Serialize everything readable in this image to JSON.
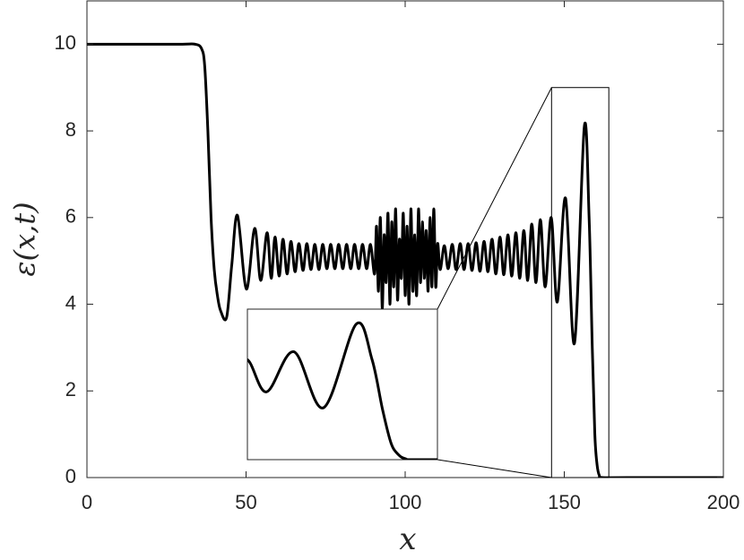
{
  "chart_data": {
    "type": "line",
    "xlabel": "x",
    "ylabel": "ε(x,t)",
    "xlim": [
      0,
      200
    ],
    "ylim": [
      0,
      11
    ],
    "xticks": [
      0,
      50,
      100,
      150,
      200
    ],
    "yticks": [
      0,
      2,
      4,
      6,
      8,
      10
    ],
    "series": [
      {
        "color": "#000000",
        "x": [
          0,
          10,
          20,
          30,
          34,
          36,
          37,
          38,
          39,
          40,
          41,
          42,
          43.9,
          45.5,
          47.3,
          50.1,
          52.7,
          54.6,
          56.6,
          57.9,
          59.1,
          60.4,
          61.6,
          62.9,
          64.1,
          65.4,
          66.6,
          67.9,
          69.1,
          70.4,
          71.6,
          72.9,
          74.1,
          75.4,
          76.6,
          77.9,
          79.1,
          80.4,
          81.6,
          82.9,
          84.1,
          85.4,
          86.6,
          87.9,
          89.1,
          90.4,
          91,
          91.6,
          92.2,
          92.8,
          93.4,
          94,
          94.6,
          95.2,
          95.8,
          96.4,
          97,
          97.6,
          98.2,
          98.8,
          99.4,
          100,
          100.6,
          101.2,
          101.8,
          102.4,
          103,
          103.6,
          104.2,
          104.8,
          105.4,
          106,
          106.6,
          107.2,
          107.8,
          108.4,
          109,
          109.6,
          110.2,
          111,
          112.3,
          113.5,
          114.8,
          116,
          117.3,
          118.5,
          119.8,
          121,
          122.3,
          123.5,
          124.8,
          126,
          127.3,
          128.5,
          129.8,
          131,
          132.3,
          133.5,
          134.8,
          136,
          137.3,
          138.5,
          139.8,
          141.1,
          142.5,
          144,
          145.9,
          147.8,
          150.4,
          153.2,
          156.3,
          157.8,
          158.8,
          159.6,
          160.3,
          161,
          162,
          170,
          200
        ],
        "values": [
          10,
          10,
          10,
          10,
          10,
          9.9,
          9.5,
          8,
          6,
          4.8,
          4.2,
          3.85,
          3.7,
          4.9,
          6.05,
          4.35,
          5.75,
          4.55,
          5.65,
          4.6,
          5.55,
          4.65,
          5.5,
          4.7,
          5.45,
          4.75,
          5.4,
          4.78,
          5.4,
          4.8,
          5.38,
          4.8,
          5.38,
          4.82,
          5.38,
          4.82,
          5.38,
          4.82,
          5.38,
          4.82,
          5.38,
          4.82,
          5.38,
          4.82,
          5.38,
          4.7,
          5.8,
          4.3,
          6,
          3.9,
          5.6,
          4.5,
          6.1,
          4,
          5.9,
          4.4,
          6.2,
          4.1,
          5.5,
          4.6,
          6.1,
          4.2,
          5.8,
          4,
          6.2,
          4.3,
          5.6,
          4.2,
          6.2,
          4.5,
          5.9,
          4.6,
          5.7,
          4.3,
          6,
          4.4,
          6.2,
          4.4,
          5.4,
          4.8,
          5.35,
          4.82,
          5.38,
          4.8,
          5.4,
          4.8,
          5.4,
          4.78,
          5.42,
          4.76,
          5.45,
          4.75,
          5.5,
          4.7,
          5.55,
          4.68,
          5.6,
          4.65,
          5.65,
          4.6,
          5.7,
          4.55,
          5.85,
          4.5,
          5.95,
          4.4,
          6,
          4.05,
          6.45,
          3.1,
          8.1,
          6,
          3,
          1,
          0.3,
          0.05,
          0,
          0,
          0
        ]
      }
    ],
    "inset": {
      "xlim": [
        146,
        164
      ],
      "ylim": [
        0,
        9
      ]
    }
  }
}
